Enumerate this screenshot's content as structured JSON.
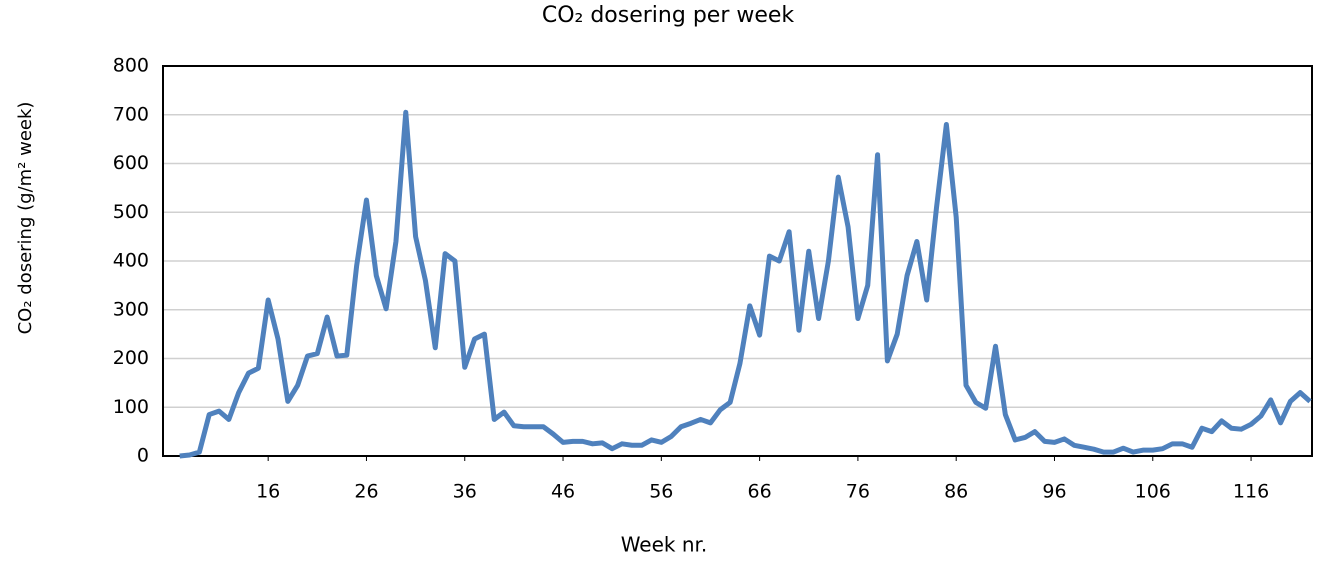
{
  "chart_data": {
    "type": "line",
    "title": "CO₂ dosering per week",
    "x_label": "Week nr.",
    "y_label": "CO₂ dosering (g/m² week)",
    "x": [
      7,
      8,
      9,
      10,
      11,
      12,
      13,
      14,
      15,
      16,
      17,
      18,
      19,
      20,
      21,
      22,
      23,
      24,
      25,
      26,
      27,
      28,
      29,
      30,
      31,
      32,
      33,
      34,
      35,
      36,
      37,
      38,
      39,
      40,
      41,
      42,
      43,
      44,
      45,
      46,
      47,
      48,
      49,
      50,
      51,
      52,
      53,
      54,
      55,
      56,
      57,
      58,
      59,
      60,
      61,
      62,
      63,
      64,
      65,
      66,
      67,
      68,
      69,
      70,
      71,
      72,
      73,
      74,
      75,
      76,
      77,
      78,
      79,
      80,
      81,
      82,
      83,
      84,
      85,
      86,
      87,
      88,
      89,
      90,
      91,
      92,
      93,
      94,
      95,
      96,
      97,
      98,
      99,
      100,
      101,
      102,
      103,
      104,
      105,
      106,
      107,
      108,
      109,
      110,
      111,
      112,
      113,
      114,
      115,
      116,
      117,
      118,
      119,
      120,
      121,
      122
    ],
    "series": [
      {
        "name": "CO₂ dosering",
        "color": "#4f81bd",
        "values": [
          0,
          2,
          8,
          85,
          92,
          75,
          130,
          170,
          180,
          320,
          240,
          112,
          145,
          205,
          210,
          285,
          205,
          207,
          390,
          525,
          370,
          302,
          440,
          705,
          450,
          360,
          222,
          415,
          400,
          182,
          240,
          250,
          75,
          90,
          62,
          60,
          60,
          60,
          45,
          28,
          30,
          30,
          25,
          27,
          15,
          25,
          22,
          22,
          33,
          28,
          40,
          60,
          67,
          75,
          68,
          95,
          110,
          190,
          308,
          248,
          410,
          400,
          460,
          258,
          420,
          282,
          400,
          572,
          470,
          282,
          350,
          618,
          195,
          250,
          370,
          440,
          320,
          510,
          680,
          490,
          145,
          110,
          98,
          225,
          85,
          33,
          38,
          50,
          30,
          28,
          35,
          22,
          18,
          14,
          8,
          8,
          16,
          8,
          12,
          12,
          15,
          25,
          25,
          18,
          57,
          50,
          72,
          57,
          55,
          65,
          82,
          115,
          68,
          112,
          130,
          112
        ]
      }
    ],
    "xlim": [
      5.3,
      122.2
    ],
    "xticks": [
      16,
      26,
      36,
      46,
      56,
      66,
      76,
      86,
      96,
      106,
      116
    ],
    "ylim": [
      0,
      800
    ],
    "yticks": [
      0,
      100,
      200,
      300,
      400,
      500,
      600,
      700,
      800
    ],
    "grid": true
  }
}
